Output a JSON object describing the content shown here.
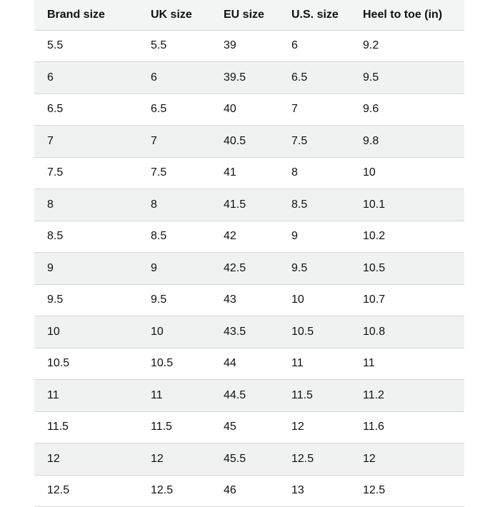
{
  "table": {
    "columns": [
      "Brand size",
      "UK size",
      "EU size",
      "U.S. size",
      "Heel to toe (in)"
    ],
    "rows": [
      [
        "5.5",
        "5.5",
        "39",
        "6",
        "9.2"
      ],
      [
        "6",
        "6",
        "39.5",
        "6.5",
        "9.5"
      ],
      [
        "6.5",
        "6.5",
        "40",
        "7",
        "9.6"
      ],
      [
        "7",
        "7",
        "40.5",
        "7.5",
        "9.8"
      ],
      [
        "7.5",
        "7.5",
        "41",
        "8",
        "10"
      ],
      [
        "8",
        "8",
        "41.5",
        "8.5",
        "10.1"
      ],
      [
        "8.5",
        "8.5",
        "42",
        "9",
        "10.2"
      ],
      [
        "9",
        "9",
        "42.5",
        "9.5",
        "10.5"
      ],
      [
        "9.5",
        "9.5",
        "43",
        "10",
        "10.7"
      ],
      [
        "10",
        "10",
        "43.5",
        "10.5",
        "10.8"
      ],
      [
        "10.5",
        "10.5",
        "44",
        "11",
        "11"
      ],
      [
        "11",
        "11",
        "44.5",
        "11.5",
        "11.2"
      ],
      [
        "11.5",
        "11.5",
        "45",
        "12",
        "11.6"
      ],
      [
        "12",
        "12",
        "45.5",
        "12.5",
        "12"
      ],
      [
        "12.5",
        "12.5",
        "46",
        "13",
        "12.5"
      ]
    ]
  },
  "colors": {
    "header_bg": "#f3f5f4",
    "stripe_bg": "#f0f2f1",
    "row_bg": "#ffffff",
    "border": "#d5d9d9",
    "text": "#0f1111"
  }
}
